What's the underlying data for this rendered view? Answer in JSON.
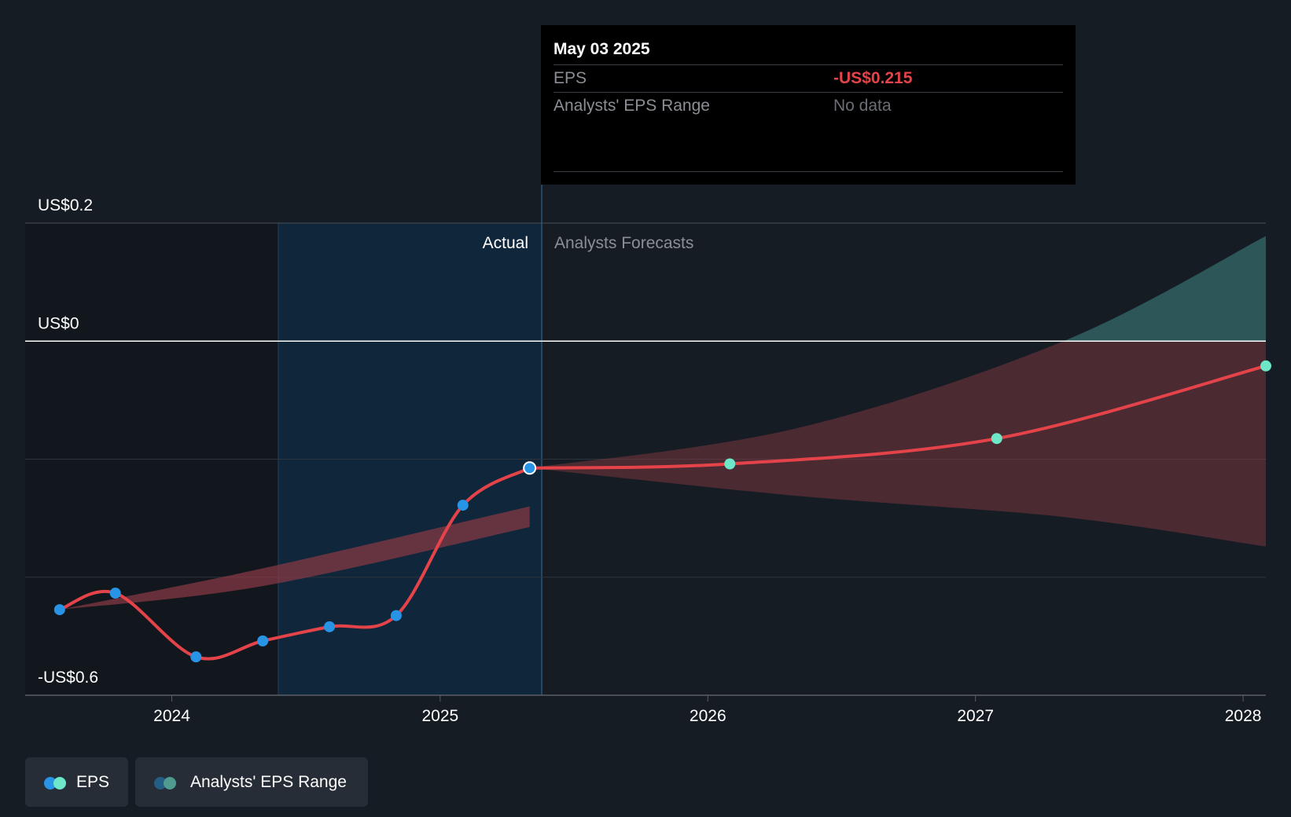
{
  "tooltip": {
    "date": "May 03 2025",
    "eps_label": "EPS",
    "eps_value": "-US$0.215",
    "range_label": "Analysts' EPS Range",
    "range_value": "No data"
  },
  "sections": {
    "actual": "Actual",
    "forecast": "Analysts Forecasts"
  },
  "legend": {
    "eps": "EPS",
    "range": "Analysts' EPS Range"
  },
  "colors": {
    "background": "#161c24",
    "eps_line": "#e5434a",
    "actual_dot": "#2894e6",
    "forecast_dot": "#6ee7c9",
    "range_fill": "#8c3b45",
    "range_positive_fill": "#2e5a5c",
    "highlight": "#10263a"
  },
  "chart_data": {
    "type": "line",
    "y_ticks": [
      {
        "value": 0.2,
        "label": "US$0.2"
      },
      {
        "value": 0,
        "label": "US$0"
      },
      {
        "value": -0.6,
        "label": "-US$0.6"
      }
    ],
    "ylim": [
      -0.6,
      0.2
    ],
    "x_ticks": [
      "2024",
      "2025",
      "2026",
      "2027",
      "2028"
    ],
    "xlim": [
      "2023-06-15",
      "2028-02-01"
    ],
    "series": [
      {
        "name": "EPS",
        "actual": [
          {
            "x": "2023-08-01",
            "y": -0.455
          },
          {
            "x": "2023-10-16",
            "y": -0.427
          },
          {
            "x": "2024-02-03",
            "y": -0.535
          },
          {
            "x": "2024-05-04",
            "y": -0.508
          },
          {
            "x": "2024-08-03",
            "y": -0.484
          },
          {
            "x": "2024-11-02",
            "y": -0.465
          },
          {
            "x": "2025-02-01",
            "y": -0.278
          },
          {
            "x": "2025-05-03",
            "y": -0.215
          }
        ],
        "forecast": [
          {
            "x": "2025-05-03",
            "y": -0.215
          },
          {
            "x": "2026-01-31",
            "y": -0.208
          },
          {
            "x": "2027-01-30",
            "y": -0.165
          },
          {
            "x": "2028-02-01",
            "y": -0.042
          }
        ]
      },
      {
        "name": "Analysts' EPS Range",
        "past_band": [
          {
            "x": "2023-08-01",
            "low": -0.455,
            "high": -0.455
          },
          {
            "x": "2024-05-04",
            "low": -0.415,
            "high": -0.385
          },
          {
            "x": "2025-05-03",
            "low": -0.315,
            "high": -0.28
          }
        ],
        "forecast_band": [
          {
            "x": "2025-05-03",
            "low": -0.215,
            "high": -0.215
          },
          {
            "x": "2026-05-01",
            "low": -0.262,
            "high": -0.148
          },
          {
            "x": "2027-05-01",
            "low": -0.298,
            "high": 0.0
          },
          {
            "x": "2028-02-01",
            "low": -0.348,
            "high": 0.178
          }
        ]
      }
    ]
  }
}
